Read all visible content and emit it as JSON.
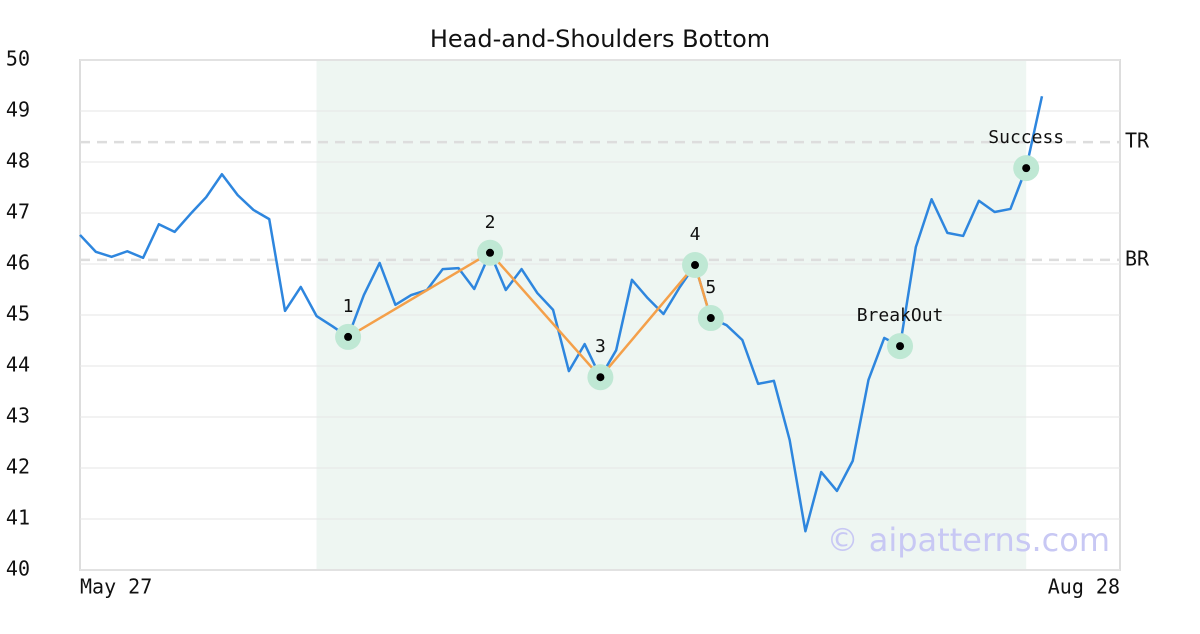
{
  "chart_data": {
    "type": "line",
    "title": "Head-and-Shoulders Bottom",
    "xlabels": [
      "May 27",
      "Aug 28"
    ],
    "values": [
      46.57,
      46.24,
      46.14,
      46.25,
      46.12,
      46.78,
      46.63,
      46.98,
      47.31,
      47.76,
      47.35,
      47.06,
      46.88,
      45.08,
      45.55,
      44.98,
      44.78,
      44.57,
      45.39,
      46.02,
      45.2,
      45.39,
      45.49,
      45.9,
      45.92,
      45.51,
      46.22,
      45.49,
      45.9,
      45.43,
      45.1,
      43.9,
      44.43,
      43.78,
      44.31,
      45.69,
      45.33,
      45.02,
      45.53,
      45.98,
      44.94,
      44.8,
      44.51,
      43.65,
      43.71,
      42.55,
      40.76,
      41.92,
      41.55,
      42.14,
      43.73,
      44.55,
      44.39,
      46.33,
      47.27,
      46.61,
      46.55,
      47.24,
      47.02,
      47.08,
      47.88,
      49.29
    ],
    "color": "#2e86de",
    "ylim": [
      40,
      50
    ],
    "yticks": [
      40,
      41,
      42,
      43,
      44,
      45,
      46,
      47,
      48,
      49,
      50
    ],
    "grid": true,
    "highlight": [
      15,
      60
    ],
    "pattern_color": "#f4a04a",
    "pattern_points": [
      {
        "label": "1",
        "index": 17
      },
      {
        "label": "2",
        "index": 26
      },
      {
        "label": "3",
        "index": 33
      },
      {
        "label": "4",
        "index": 39
      },
      {
        "label": "5",
        "index": 40
      }
    ],
    "events": [
      {
        "label": "BreakOut",
        "index": 52
      },
      {
        "label": "Success",
        "index": 60
      }
    ],
    "reference_lines": [
      {
        "label": "TR",
        "value": 48.39
      },
      {
        "label": "BR",
        "value": 46.08
      }
    ],
    "watermark": "© aipatterns.com"
  }
}
